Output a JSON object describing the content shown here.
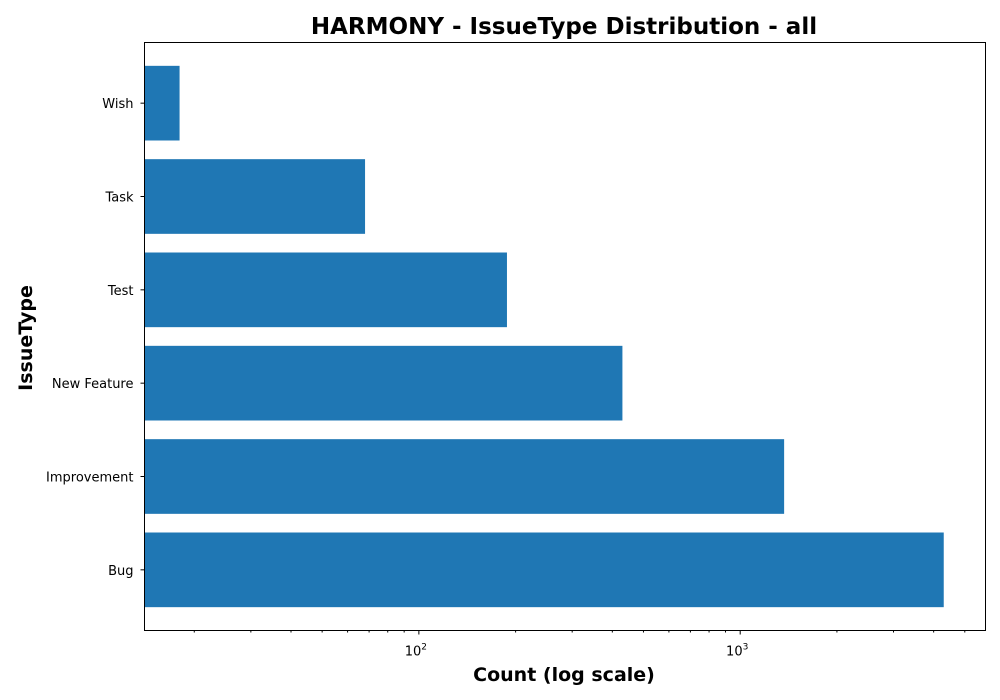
{
  "chart_data": {
    "type": "bar",
    "orientation": "horizontal",
    "title": "HARMONY - IssueType Distribution - all",
    "xlabel": "Count (log scale)",
    "ylabel": "IssueType",
    "xscale": "log",
    "xlim": [
      14,
      5800
    ],
    "categories": [
      "Bug",
      "Improvement",
      "New Feature",
      "Test",
      "Task",
      "Wish"
    ],
    "values": [
      4300,
      1370,
      430,
      188,
      68,
      18
    ],
    "x_tick_labels": [
      {
        "base": "10",
        "exp": "2",
        "value": 100
      },
      {
        "base": "10",
        "exp": "3",
        "value": 1000
      }
    ],
    "bar_color": "#1f77b4",
    "grid": false,
    "legend": "none"
  }
}
